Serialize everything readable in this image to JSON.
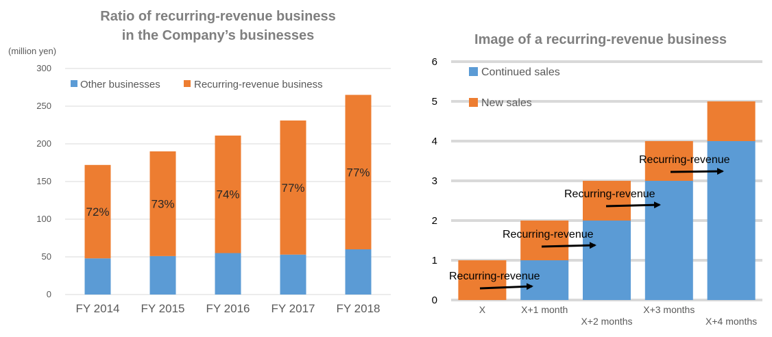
{
  "chart_data": [
    {
      "type": "bar",
      "stacked": true,
      "title": "Ratio of recurring-revenue business in the Company’s businesses",
      "title_lines": [
        "Ratio of recurring-revenue business",
        "in the Company’s businesses"
      ],
      "ylabel": "(million yen)",
      "ylim": [
        0,
        300
      ],
      "yticks": [
        0,
        50,
        100,
        150,
        200,
        250,
        300
      ],
      "grid": true,
      "legend_position": "top",
      "categories": [
        "FY 2014",
        "FY 2015",
        "FY 2016",
        "FY 2017",
        "FY 2018"
      ],
      "series": [
        {
          "name": "Other businesses",
          "color": "#5b9bd5",
          "values": [
            48,
            51,
            55,
            53,
            60
          ]
        },
        {
          "name": "Recurring-revenue business",
          "color": "#ed7d31",
          "values": [
            124,
            139,
            156,
            178,
            205
          ]
        }
      ],
      "data_labels": [
        "72%",
        "73%",
        "74%",
        "77%",
        "77%"
      ]
    },
    {
      "type": "bar",
      "stacked": true,
      "title": "Image of a recurring-revenue business",
      "ylim": [
        0,
        6
      ],
      "yticks": [
        0,
        1,
        2,
        3,
        4,
        5,
        6
      ],
      "grid": true,
      "legend_position": "top-left",
      "categories": [
        "X",
        "X+1 month",
        "X+2 months",
        "X+3 months",
        "X+4 months"
      ],
      "series": [
        {
          "name": "Continued sales",
          "color": "#5b9bd5",
          "values": [
            0,
            1,
            2,
            3,
            4
          ]
        },
        {
          "name": "New sales",
          "color": "#ed7d31",
          "values": [
            1,
            1,
            1,
            1,
            1
          ]
        }
      ],
      "annotations": [
        "Recurring-revenue",
        "Recurring-revenue",
        "Recurring-revenue",
        "Recurring-revenue"
      ]
    }
  ]
}
